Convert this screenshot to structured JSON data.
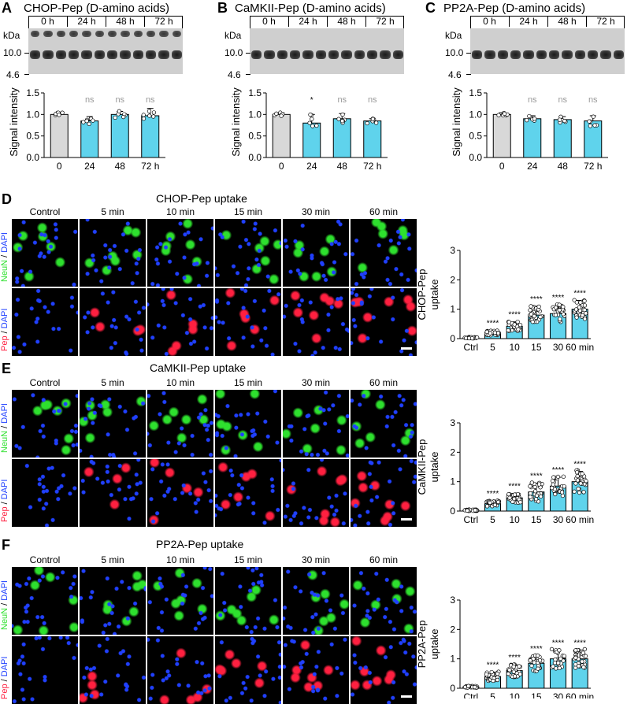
{
  "colors": {
    "bar_fill": "#5fd3ec",
    "control_fill": "#d8d8d8",
    "neun_green": "#2ee02e",
    "dapi_blue": "#2040ff",
    "pep_red": "#ff2040",
    "ns_gray": "#999999"
  },
  "panelA": {
    "label": "A",
    "title": "CHOP-Pep (D-amino acids)",
    "kda": "kDa",
    "m1": "10.0",
    "m2": "4.6",
    "times": [
      "0 h",
      "24 h",
      "48 h",
      "72 h"
    ]
  },
  "panelB": {
    "label": "B",
    "title": "CaMKII-Pep (D-amino acids)",
    "kda": "kDa",
    "m1": "10.0",
    "m2": "4.6",
    "times": [
      "0 h",
      "24 h",
      "48 h",
      "72 h"
    ]
  },
  "panelC": {
    "label": "C",
    "title": "PP2A-Pep (D-amino acids)",
    "kda": "kDa",
    "m1": "10.0",
    "m2": "4.6",
    "times": [
      "0 h",
      "24 h",
      "48 h",
      "72 h"
    ]
  },
  "panelD": {
    "label": "D",
    "title": "CHOP-Pep uptake"
  },
  "panelE": {
    "label": "E",
    "title": "CaMKII-Pep uptake"
  },
  "panelF": {
    "label": "F",
    "title": "PP2A-Pep uptake"
  },
  "columns": [
    "Control",
    "5 min",
    "10 min",
    "15 min",
    "30 min",
    "60 min"
  ],
  "row_labels": {
    "top_a": "NeuN",
    "sep": " / ",
    "top_b": "DAPI",
    "bottom_a": "Pep",
    "bottom_b": "DAPI"
  },
  "chart_data": [
    {
      "type": "bar",
      "panel": "A",
      "ylabel": "Signal intensity",
      "categories": [
        "0",
        "24",
        "48",
        "72 h"
      ],
      "values": [
        1.0,
        0.85,
        1.0,
        0.97
      ],
      "errors": [
        0.04,
        0.1,
        0.07,
        0.17
      ],
      "ylim": [
        0,
        1.5
      ],
      "yticks": [
        "0.0",
        "0.5",
        "1.0",
        "1.5"
      ],
      "annotations": [
        "",
        "ns",
        "ns",
        "ns"
      ]
    },
    {
      "type": "bar",
      "panel": "B",
      "ylabel": "Signal intensity",
      "categories": [
        "0",
        "24",
        "48",
        "72 h"
      ],
      "values": [
        1.0,
        0.8,
        0.9,
        0.85
      ],
      "errors": [
        0.04,
        0.2,
        0.12,
        0.05
      ],
      "ylim": [
        0,
        1.5
      ],
      "yticks": [
        "0.0",
        "0.5",
        "1.0",
        "1.5"
      ],
      "annotations": [
        "",
        "*",
        "ns",
        "ns"
      ]
    },
    {
      "type": "bar",
      "panel": "C",
      "ylabel": "Signal intensity",
      "categories": [
        "0",
        "24",
        "48",
        "72 h"
      ],
      "values": [
        1.0,
        0.9,
        0.88,
        0.85
      ],
      "errors": [
        0.04,
        0.07,
        0.07,
        0.12
      ],
      "ylim": [
        0,
        1.5
      ],
      "yticks": [
        "0.0",
        "0.5",
        "1.0",
        "1.5"
      ],
      "annotations": [
        "",
        "ns",
        "ns",
        "ns"
      ]
    },
    {
      "type": "bar",
      "panel": "D",
      "ylabel": "CHOP-Pep uptake",
      "categories": [
        "Ctrl",
        "5",
        "10",
        "15",
        "30",
        "60 min"
      ],
      "values": [
        0.03,
        0.2,
        0.42,
        0.8,
        0.85,
        1.0
      ],
      "errors": [
        0.02,
        0.08,
        0.15,
        0.3,
        0.3,
        0.3
      ],
      "ylim": [
        0,
        3
      ],
      "yticks": [
        "0",
        "1",
        "2",
        "3"
      ],
      "annotations": [
        "",
        "****",
        "****",
        "****",
        "****",
        "****"
      ]
    },
    {
      "type": "bar",
      "panel": "E",
      "ylabel": "CaMKII-Pep uptake",
      "categories": [
        "Ctrl",
        "5",
        "10",
        "15",
        "30",
        "60 min"
      ],
      "values": [
        0.03,
        0.25,
        0.45,
        0.65,
        0.85,
        1.0
      ],
      "errors": [
        0.02,
        0.1,
        0.15,
        0.3,
        0.3,
        0.35
      ],
      "ylim": [
        0,
        3
      ],
      "yticks": [
        "0",
        "1",
        "2",
        "3"
      ],
      "annotations": [
        "",
        "****",
        "****",
        "****",
        "****",
        "****"
      ]
    },
    {
      "type": "bar",
      "panel": "F",
      "ylabel": "PP2A-Pep uptake",
      "categories": [
        "Ctrl",
        "5",
        "10",
        "15",
        "30",
        "60 min"
      ],
      "values": [
        0.05,
        0.4,
        0.6,
        0.85,
        1.0,
        1.0
      ],
      "errors": [
        0.03,
        0.15,
        0.2,
        0.25,
        0.3,
        0.3
      ],
      "ylim": [
        0,
        3
      ],
      "yticks": [
        "0",
        "1",
        "2",
        "3"
      ],
      "annotations": [
        "",
        "****",
        "****",
        "****",
        "****",
        "****"
      ]
    }
  ]
}
